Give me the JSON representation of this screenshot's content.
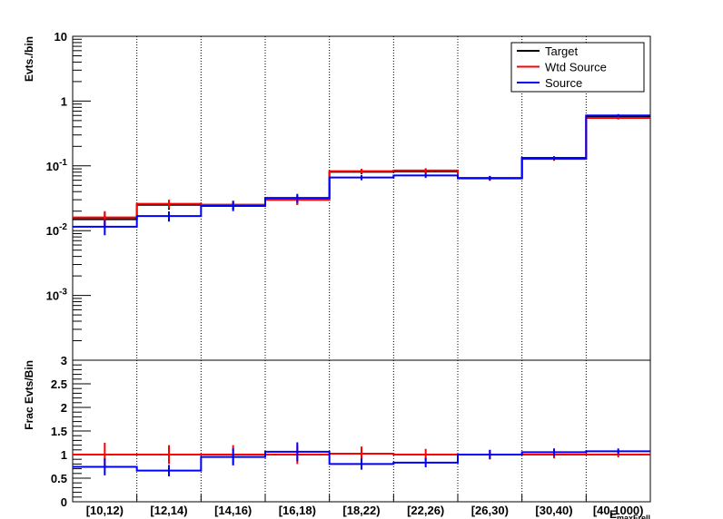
{
  "chart_data": [
    {
      "type": "step",
      "ylabel": "Evts./bin",
      "yscale": "log",
      "ylim": [
        0.0001,
        10
      ],
      "grid": "vertical-dotted",
      "legend_position": "top-right",
      "ytick_labels": [
        "10",
        "1",
        "10^-1",
        "10^-2",
        "10^-3"
      ],
      "categories": [
        "[10,12)",
        "[12,14)",
        "[14,16)",
        "[16,18)",
        "[18,22)",
        "[22,26)",
        "[26,30)",
        "[30,40)",
        "[40,1000)"
      ],
      "series": [
        {
          "name": "Target",
          "color": "#000000",
          "values": [
            0.015,
            0.025,
            0.025,
            0.03,
            0.081,
            0.082,
            0.064,
            0.128,
            0.58
          ],
          "errors": [
            0.004,
            0.004,
            0.004,
            0.005,
            0.007,
            0.007,
            0.005,
            0.008,
            0.03
          ]
        },
        {
          "name": "Wtd Source",
          "color": "#ff0000",
          "values": [
            0.016,
            0.026,
            0.025,
            0.03,
            0.083,
            0.085,
            0.064,
            0.13,
            0.55
          ],
          "errors": [
            0.004,
            0.004,
            0.004,
            0.005,
            0.007,
            0.007,
            0.005,
            0.008,
            0.03
          ]
        },
        {
          "name": "Source",
          "color": "#0000ff",
          "values": [
            0.0115,
            0.0168,
            0.024,
            0.032,
            0.066,
            0.071,
            0.065,
            0.133,
            0.6
          ],
          "errors": [
            0.003,
            0.003,
            0.004,
            0.005,
            0.006,
            0.006,
            0.005,
            0.008,
            0.03
          ]
        }
      ]
    },
    {
      "type": "step",
      "ylabel": "Frac Evts/Bin",
      "xlabel": "E_maxFrell",
      "ylim": [
        0,
        3
      ],
      "grid": "vertical-dotted",
      "ytick_labels": [
        "0",
        "0.5",
        "1",
        "1.5",
        "2",
        "2.5",
        "3"
      ],
      "categories": [
        "[10,12)",
        "[12,14)",
        "[14,16)",
        "[16,18)",
        "[18,22)",
        "[22,26)",
        "[26,30)",
        "[30,40)",
        "[40,1000)"
      ],
      "series": [
        {
          "name": "Wtd Source",
          "color": "#ff0000",
          "values": [
            1.0,
            1.0,
            1.0,
            1.0,
            1.02,
            1.0,
            1.0,
            1.0,
            1.0
          ],
          "errors": [
            0.25,
            0.2,
            0.2,
            0.2,
            0.15,
            0.12,
            0.1,
            0.08,
            0.06
          ]
        },
        {
          "name": "Source",
          "color": "#0000ff",
          "values": [
            0.74,
            0.66,
            0.95,
            1.06,
            0.8,
            0.83,
            1.0,
            1.05,
            1.07
          ],
          "errors": [
            0.18,
            0.12,
            0.18,
            0.2,
            0.12,
            0.1,
            0.1,
            0.08,
            0.06
          ]
        }
      ]
    }
  ]
}
